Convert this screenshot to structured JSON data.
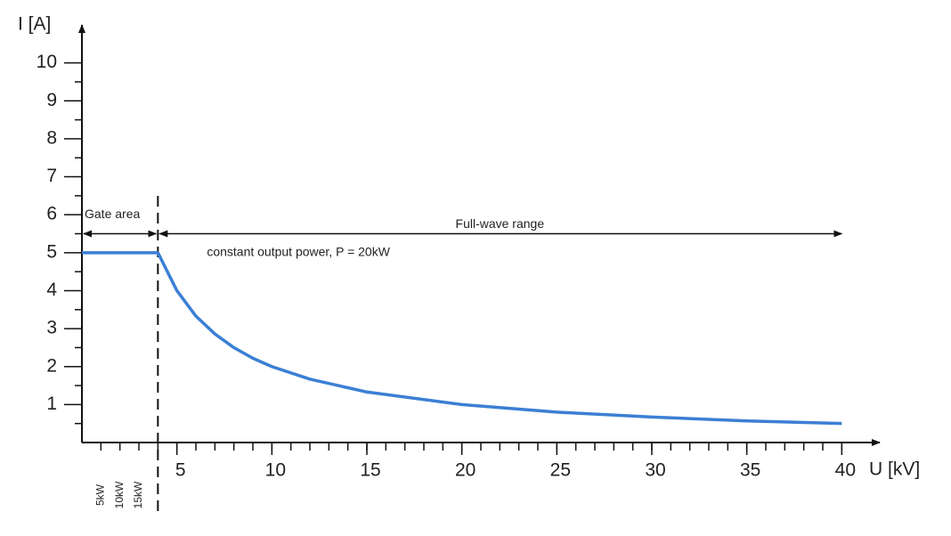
{
  "chart_data": {
    "type": "line",
    "y_label": "I [A]",
    "x_label": "U [kV]",
    "x": [
      0,
      4,
      5,
      6,
      7,
      8,
      9,
      10,
      12,
      15,
      20,
      25,
      30,
      35,
      40
    ],
    "series": [
      {
        "name": "constant output power, P = 20kW",
        "color": "#3b7fd4",
        "values": [
          5,
          5,
          4,
          3.33,
          2.86,
          2.5,
          2.22,
          2,
          1.67,
          1.33,
          1,
          0.8,
          0.67,
          0.57,
          0.5
        ]
      }
    ],
    "xlim": [
      0,
      42
    ],
    "ylim": [
      0,
      11
    ],
    "xticks": [
      5,
      10,
      15,
      20,
      25,
      30,
      35,
      40
    ],
    "yticks": [
      1,
      2,
      3,
      4,
      5,
      6,
      7,
      8,
      9,
      10
    ],
    "gate_boundary": 4,
    "gate_label": "Gate area",
    "range_label": "Full-wave range",
    "arrow_level": 5.5,
    "power_labels": [
      "5kW",
      "10kW",
      "15kW"
    ]
  }
}
